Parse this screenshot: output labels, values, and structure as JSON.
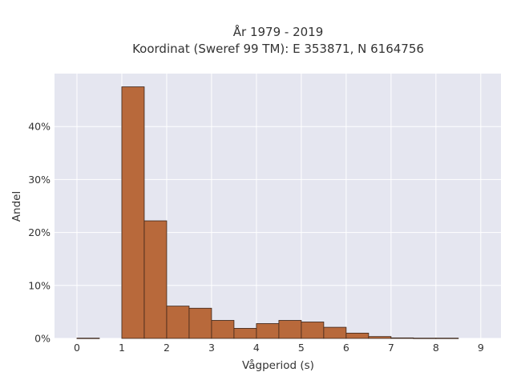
{
  "chart_data": {
    "type": "bar",
    "title_line1": "År 1979 - 2019",
    "title_line2": "Koordinat (Sweref 99 TM): E 353871, N 6164756",
    "xlabel": "Vågperiod (s)",
    "ylabel": "Andel",
    "bin_width": 0.5,
    "bins": [
      {
        "x0": 0.0,
        "value": 0.05
      },
      {
        "x0": 0.5,
        "value": 0.0
      },
      {
        "x0": 1.0,
        "value": 47.5
      },
      {
        "x0": 1.5,
        "value": 22.2
      },
      {
        "x0": 2.0,
        "value": 6.1
      },
      {
        "x0": 2.5,
        "value": 5.7
      },
      {
        "x0": 3.0,
        "value": 3.4
      },
      {
        "x0": 3.5,
        "value": 1.9
      },
      {
        "x0": 4.0,
        "value": 2.8
      },
      {
        "x0": 4.5,
        "value": 3.4
      },
      {
        "x0": 5.0,
        "value": 3.1
      },
      {
        "x0": 5.5,
        "value": 2.1
      },
      {
        "x0": 6.0,
        "value": 1.0
      },
      {
        "x0": 6.5,
        "value": 0.35
      },
      {
        "x0": 7.0,
        "value": 0.1
      },
      {
        "x0": 7.5,
        "value": 0.05
      },
      {
        "x0": 8.0,
        "value": 0.05
      }
    ],
    "xlim": [
      -0.5,
      9.45
    ],
    "ylim": [
      0,
      50
    ],
    "xticks": [
      0,
      1,
      2,
      3,
      4,
      5,
      6,
      7,
      8,
      9
    ],
    "yticks": [
      0,
      10,
      20,
      30,
      40
    ],
    "ytick_labels": [
      "0%",
      "10%",
      "20%",
      "30%",
      "40%"
    ],
    "grid": true
  },
  "colors": {
    "bar_fill": "#b8693b",
    "bar_edge": "#3a2418",
    "plot_bg": "#e5e6f0",
    "grid": "#ffffff"
  }
}
